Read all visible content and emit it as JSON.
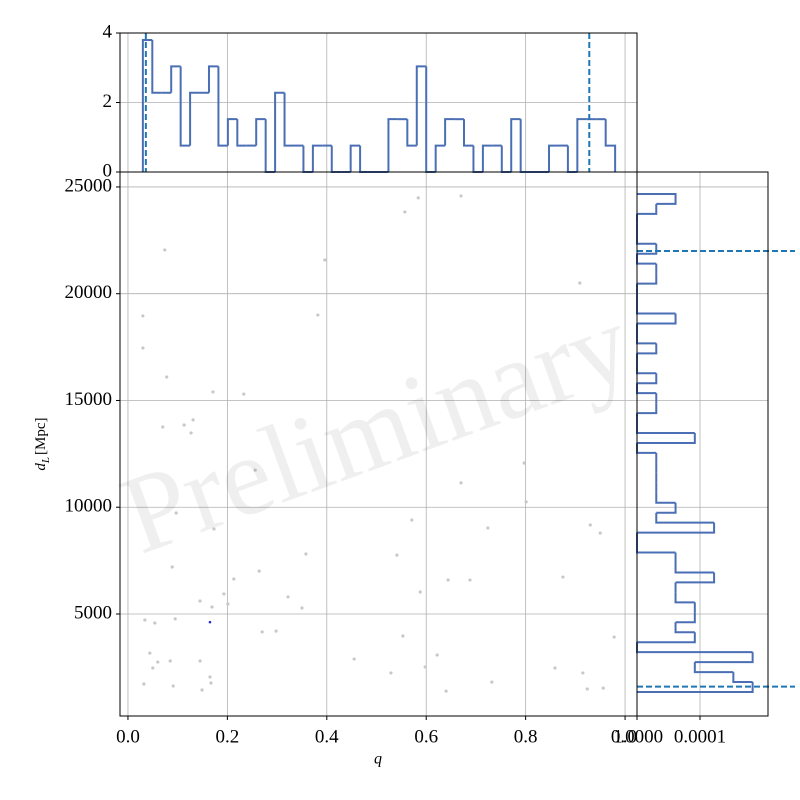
{
  "chart_data": [
    {
      "type": "scatter",
      "xlabel": "q",
      "ylabel": {
        "symbol": "d",
        "subscript": "L",
        "unit": "[Mpc]"
      },
      "watermark": "Preliminary",
      "x": [
        0.03,
        0.03,
        0.074,
        0.078,
        0.171,
        0.131,
        0.127,
        0.113,
        0.07,
        0.233,
        0.256,
        0.382,
        0.396,
        0.67,
        0.584,
        0.557,
        0.909,
        0.797,
        0.67,
        0.801,
        0.571,
        0.724,
        0.93,
        0.95,
        0.173,
        0.089,
        0.097,
        0.358,
        0.264,
        0.213,
        0.193,
        0.145,
        0.201,
        0.169,
        0.322,
        0.541,
        0.644,
        0.688,
        0.588,
        0.875,
        0.35,
        0.27,
        0.298,
        0.553,
        0.978,
        0.034,
        0.095,
        0.054,
        0.044,
        0.06,
        0.05,
        0.455,
        0.622,
        0.085,
        0.145,
        0.165,
        0.167,
        0.032,
        0.091,
        0.149,
        0.529,
        0.598,
        0.64,
        0.859,
        0.915,
        0.956,
        0.924,
        0.732
      ],
      "y": [
        18960,
        17460,
        22050,
        16100,
        15400,
        14090,
        13480,
        13850,
        13760,
        15300,
        11740,
        19000,
        21580,
        24580,
        24490,
        23830,
        20500,
        12070,
        11140,
        10250,
        9400,
        9030,
        9170,
        8790,
        8980,
        7200,
        9730,
        7810,
        7010,
        6640,
        5940,
        5610,
        5470,
        5330,
        5800,
        7760,
        6590,
        6590,
        6030,
        6730,
        5280,
        4160,
        4200,
        3970,
        3920,
        4720,
        4770,
        4580,
        3170,
        2750,
        2470,
        2890,
        3080,
        2800,
        2800,
        2050,
        1770,
        1720,
        1630,
        1440,
        2240,
        2520,
        1390,
        2470,
        2240,
        1530,
        1490,
        1810
      ],
      "color": "#c8c8c8",
      "highlight": {
        "x": [
          0.165
        ],
        "y": [
          4620
        ],
        "color": "#2a2ad0"
      },
      "xlim": [
        -0.016,
        1.024
      ],
      "ylim": [
        223,
        25700
      ],
      "xticks": [
        {
          "value": 0,
          "label": "0.0"
        },
        {
          "value": 0.2,
          "label": "0.2"
        },
        {
          "value": 0.4,
          "label": "0.4"
        },
        {
          "value": 0.6,
          "label": "0.6"
        },
        {
          "value": 0.8,
          "label": "0.8"
        },
        {
          "value": 1,
          "label": "1.0"
        }
      ],
      "yticks": [
        5000,
        10000,
        15000,
        20000,
        25000
      ],
      "grid": true
    },
    {
      "type": "histogram",
      "orientation": "vertical",
      "bins": [
        0.03,
        0.049,
        0.068,
        0.087,
        0.106,
        0.125,
        0.144,
        0.163,
        0.182,
        0.201,
        0.22,
        0.239,
        0.258,
        0.277,
        0.296,
        0.315,
        0.334,
        0.353,
        0.372,
        0.391,
        0.41,
        0.429,
        0.448,
        0.467,
        0.486,
        0.505,
        0.524,
        0.543,
        0.562,
        0.581,
        0.6,
        0.619,
        0.638,
        0.657,
        0.676,
        0.695,
        0.714,
        0.733,
        0.752,
        0.771,
        0.79,
        0.809,
        0.828,
        0.847,
        0.866,
        0.885,
        0.904,
        0.923,
        0.942,
        0.961,
        0.98
      ],
      "values": [
        3.8,
        2.28,
        2.28,
        3.04,
        0.76,
        2.28,
        2.28,
        3.04,
        0.76,
        1.52,
        0.76,
        0.76,
        1.52,
        0,
        2.28,
        0.76,
        0.76,
        0,
        0.76,
        0.76,
        0,
        0,
        0.76,
        0,
        0,
        0,
        1.52,
        1.52,
        0.76,
        3.04,
        0,
        0.76,
        1.52,
        1.52,
        0.76,
        0,
        0.76,
        0.76,
        0,
        1.52,
        0,
        0,
        0,
        0.76,
        0.76,
        0,
        1.52,
        1.52,
        1.52,
        0.76
      ],
      "color": "#4a6fb4",
      "xlim": [
        -0.016,
        1.024
      ],
      "ylim": [
        0,
        4
      ],
      "yticks": [
        0,
        2,
        4
      ],
      "lines": [
        0.036,
        0.928
      ],
      "line_color": "#1f77b4",
      "grid": true
    },
    {
      "type": "histogram",
      "orientation": "horizontal",
      "bins": [
        1347,
        1813.5,
        2280,
        2746.5,
        3213,
        3679.5,
        4146,
        4612.5,
        5079,
        5545.5,
        6012,
        6478.5,
        6945,
        7411.5,
        7878,
        8344.5,
        8811,
        9277.5,
        9744,
        10210.5,
        10677,
        11143.5,
        11610,
        12076.5,
        12543,
        13009.5,
        13476,
        13942.5,
        14409,
        14875.5,
        15342,
        15808.5,
        16275,
        16741.5,
        17208,
        17674.5,
        18141,
        18607.5,
        19074,
        19540.5,
        20007,
        20473.5,
        20940,
        21406.5,
        21873,
        22339.5,
        22806,
        23272.5,
        23739,
        24205.5,
        24672
      ],
      "values": [
        0.0001836,
        0.000153,
        9.18e-05,
        0.0001836,
        0,
        9.18e-05,
        6.12e-05,
        9.18e-05,
        9.18e-05,
        6.12e-05,
        6.12e-05,
        0.0001224,
        6.12e-05,
        6.12e-05,
        0,
        0,
        0.0001224,
        3.06e-05,
        6.12e-05,
        3.06e-05,
        3.06e-05,
        3.06e-05,
        3.06e-05,
        3.06e-05,
        0,
        9.18e-05,
        0,
        0,
        3.06e-05,
        3.06e-05,
        0,
        3.06e-05,
        0,
        0,
        3.06e-05,
        0,
        0,
        6.12e-05,
        0,
        0,
        0,
        3.06e-05,
        3.06e-05,
        0,
        3.06e-05,
        0,
        0,
        0,
        3.06e-05,
        6.12e-05
      ],
      "color": "#4a6fb4",
      "xlim": [
        0,
        0.000208
      ],
      "ylim": [
        223,
        25700
      ],
      "xticks": [
        {
          "value": 0,
          "label": "0.0000"
        },
        {
          "value": 0.0001,
          "label": "0.0001"
        }
      ],
      "lines": [
        1600,
        22000
      ],
      "line_color": "#1f77b4",
      "grid": true
    }
  ]
}
